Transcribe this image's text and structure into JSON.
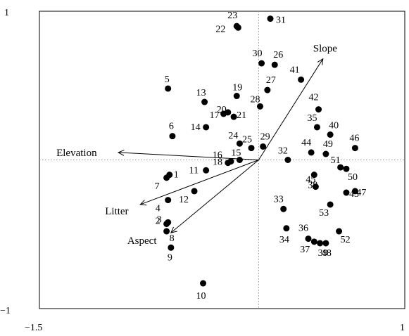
{
  "chart_data": {
    "type": "scatter",
    "xlim": [
      -1.5,
      1
    ],
    "ylim": [
      -1,
      1
    ],
    "x_ticks": [
      "−1.5",
      "1"
    ],
    "y_ticks": [
      "1",
      "−1"
    ],
    "zero_lines": true,
    "points": [
      {
        "label": "1",
        "x": -0.61,
        "y": -0.1
      },
      {
        "label": "2",
        "x": -0.63,
        "y": -0.43
      },
      {
        "label": "3",
        "x": -0.62,
        "y": -0.42
      },
      {
        "label": "4",
        "x": -0.62,
        "y": -0.27
      },
      {
        "label": "5",
        "x": -0.62,
        "y": 0.48
      },
      {
        "label": "6",
        "x": -0.59,
        "y": 0.16
      },
      {
        "label": "7",
        "x": -0.63,
        "y": -0.12
      },
      {
        "label": "8",
        "x": -0.63,
        "y": -0.48
      },
      {
        "label": "9",
        "x": -0.6,
        "y": -0.59
      },
      {
        "label": "10",
        "x": -0.38,
        "y": -0.83
      },
      {
        "label": "11",
        "x": -0.36,
        "y": -0.07
      },
      {
        "label": "12",
        "x": -0.44,
        "y": -0.21
      },
      {
        "label": "13",
        "x": -0.37,
        "y": 0.39
      },
      {
        "label": "14",
        "x": -0.36,
        "y": 0.22
      },
      {
        "label": "15",
        "x": -0.13,
        "y": 0.0
      },
      {
        "label": "16",
        "x": -0.21,
        "y": -0.02
      },
      {
        "label": "17",
        "x": -0.24,
        "y": 0.31
      },
      {
        "label": "18",
        "x": -0.19,
        "y": -0.01
      },
      {
        "label": "19",
        "x": -0.15,
        "y": 0.43
      },
      {
        "label": "20",
        "x": -0.21,
        "y": 0.32
      },
      {
        "label": "21",
        "x": -0.17,
        "y": 0.29
      },
      {
        "label": "22",
        "x": -0.14,
        "y": 0.89
      },
      {
        "label": "23",
        "x": -0.15,
        "y": 0.9
      },
      {
        "label": "24",
        "x": -0.13,
        "y": 0.11
      },
      {
        "label": "25",
        "x": -0.05,
        "y": 0.08
      },
      {
        "label": "26",
        "x": 0.11,
        "y": 0.64
      },
      {
        "label": "27",
        "x": 0.06,
        "y": 0.47
      },
      {
        "label": "28",
        "x": 0.01,
        "y": 0.36
      },
      {
        "label": "29",
        "x": 0.03,
        "y": 0.09
      },
      {
        "label": "30",
        "x": 0.02,
        "y": 0.65
      },
      {
        "label": "31",
        "x": 0.08,
        "y": 0.95
      },
      {
        "label": "32",
        "x": 0.2,
        "y": 0.0
      },
      {
        "label": "33",
        "x": 0.17,
        "y": -0.33
      },
      {
        "label": "34",
        "x": 0.19,
        "y": -0.46
      },
      {
        "label": "35",
        "x": 0.4,
        "y": 0.22
      },
      {
        "label": "36",
        "x": 0.34,
        "y": -0.53
      },
      {
        "label": "37",
        "x": 0.38,
        "y": -0.55
      },
      {
        "label": "38",
        "x": 0.38,
        "y": -0.1
      },
      {
        "label": "39",
        "x": 0.42,
        "y": -0.56
      },
      {
        "label": "40",
        "x": 0.49,
        "y": 0.17
      },
      {
        "label": "41",
        "x": 0.29,
        "y": 0.54
      },
      {
        "label": "42",
        "x": 0.41,
        "y": 0.34
      },
      {
        "label": "43",
        "x": 0.6,
        "y": -0.22
      },
      {
        "label": "44",
        "x": 0.36,
        "y": 0.05
      },
      {
        "label": "45",
        "x": 0.39,
        "y": -0.18
      },
      {
        "label": "46",
        "x": 0.66,
        "y": 0.08
      },
      {
        "label": "47",
        "x": 0.66,
        "y": -0.21
      },
      {
        "label": "48",
        "x": 0.46,
        "y": -0.56
      },
      {
        "label": "49",
        "x": 0.46,
        "y": 0.04
      },
      {
        "label": "50",
        "x": 0.6,
        "y": -0.06
      },
      {
        "label": "51",
        "x": 0.56,
        "y": -0.05
      },
      {
        "label": "52",
        "x": 0.55,
        "y": -0.48
      },
      {
        "label": "53",
        "x": 0.49,
        "y": -0.3
      }
    ],
    "vectors": [
      {
        "label": "Elevation",
        "x": -0.96,
        "y": 0.05
      },
      {
        "label": "Slope",
        "x": 0.44,
        "y": 0.68
      },
      {
        "label": "Litter",
        "x": -0.81,
        "y": -0.3
      },
      {
        "label": "Aspect",
        "x": -0.6,
        "y": -0.49
      }
    ]
  }
}
